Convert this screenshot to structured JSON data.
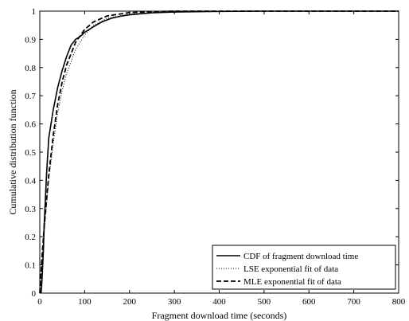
{
  "chart_data": {
    "type": "line",
    "title": "",
    "xlabel": "Fragment download time (seconds)",
    "ylabel": "Cumulative distribution function",
    "xlim": [
      0,
      800
    ],
    "ylim": [
      0,
      1
    ],
    "xticks": [
      0,
      100,
      200,
      300,
      400,
      500,
      600,
      700,
      800
    ],
    "yticks": [
      0,
      0.1,
      0.2,
      0.3,
      0.4,
      0.5,
      0.6,
      0.7,
      0.8,
      0.9,
      1
    ],
    "grid": false,
    "legend_position": "bottom-right",
    "series": [
      {
        "name": "CDF of fragment download time",
        "style": "solid",
        "color": "#000000",
        "points": [
          [
            3,
            0
          ],
          [
            5,
            0.05
          ],
          [
            8,
            0.15
          ],
          [
            10,
            0.25
          ],
          [
            15,
            0.42
          ],
          [
            20,
            0.55
          ],
          [
            25,
            0.6
          ],
          [
            30,
            0.65
          ],
          [
            40,
            0.73
          ],
          [
            50,
            0.79
          ],
          [
            60,
            0.84
          ],
          [
            70,
            0.88
          ],
          [
            80,
            0.9
          ],
          [
            90,
            0.91
          ],
          [
            100,
            0.925
          ],
          [
            120,
            0.945
          ],
          [
            140,
            0.963
          ],
          [
            160,
            0.975
          ],
          [
            180,
            0.982
          ],
          [
            200,
            0.987
          ],
          [
            250,
            0.994
          ],
          [
            300,
            0.997
          ],
          [
            400,
            0.999
          ],
          [
            500,
            1
          ],
          [
            800,
            1
          ]
        ]
      },
      {
        "name": "LSE exponential fit of data",
        "style": "dotted",
        "color": "#000000",
        "points": [
          [
            0,
            0
          ],
          [
            5,
            0.12
          ],
          [
            10,
            0.22
          ],
          [
            20,
            0.4
          ],
          [
            30,
            0.53
          ],
          [
            40,
            0.64
          ],
          [
            50,
            0.72
          ],
          [
            60,
            0.78
          ],
          [
            80,
            0.865
          ],
          [
            100,
            0.915
          ],
          [
            120,
            0.95
          ],
          [
            150,
            0.975
          ],
          [
            200,
            0.99
          ],
          [
            250,
            0.996
          ],
          [
            300,
            0.998
          ],
          [
            400,
            1
          ],
          [
            800,
            1
          ]
        ]
      },
      {
        "name": "MLE exponential fit of data",
        "style": "dashed",
        "color": "#000000",
        "points": [
          [
            0,
            0
          ],
          [
            5,
            0.13
          ],
          [
            10,
            0.24
          ],
          [
            20,
            0.42
          ],
          [
            30,
            0.56
          ],
          [
            40,
            0.67
          ],
          [
            50,
            0.75
          ],
          [
            60,
            0.81
          ],
          [
            80,
            0.89
          ],
          [
            100,
            0.935
          ],
          [
            120,
            0.962
          ],
          [
            150,
            0.983
          ],
          [
            200,
            0.995
          ],
          [
            250,
            0.998
          ],
          [
            300,
            1
          ],
          [
            800,
            1
          ]
        ]
      }
    ]
  }
}
